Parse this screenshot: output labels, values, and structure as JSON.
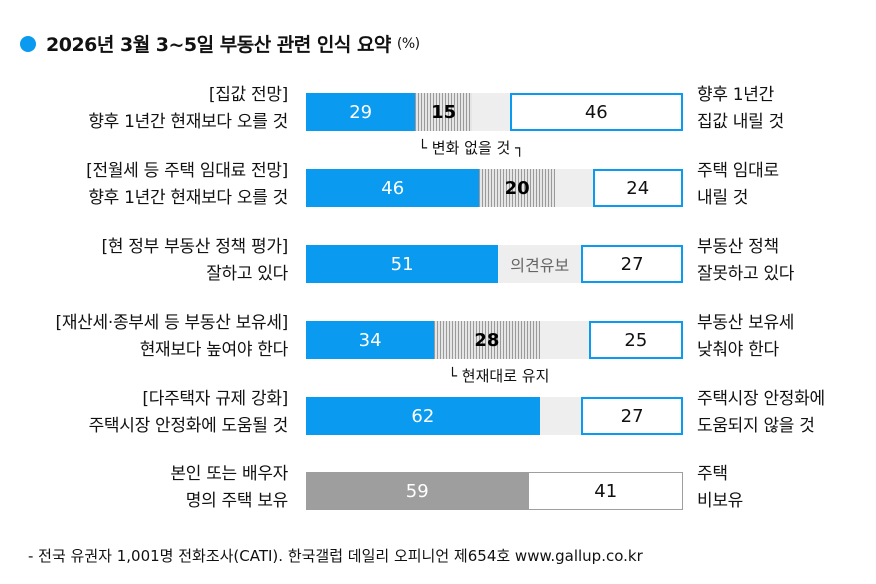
{
  "title": "2026년 3월 3~5일 부동산 관련 인식 요약",
  "unit": "(%)",
  "colors": {
    "accent": "#0a9bf0",
    "neutral": "#9e9e9e",
    "remainder": "#eeeeee"
  },
  "chart_data": {
    "type": "bar",
    "stacked": true,
    "title": "2026년 3월 3~5일 부동산 관련 인식 요약 (%)",
    "rows": [
      {
        "left": [
          "[집값 전망]",
          "향후 1년간 현재보다 오를 것"
        ],
        "right": [
          "향후 1년간",
          "집값 내릴 것"
        ],
        "primary": 29,
        "middle": 15,
        "middle_label": "",
        "secondary": 46
      },
      {
        "left": [
          "[전월세 등 주택 임대료 전망]",
          "향후 1년간 현재보다 오를 것"
        ],
        "right": [
          "주택 임대로",
          "내릴 것"
        ],
        "primary": 46,
        "middle": 20,
        "middle_label": "",
        "secondary": 24
      },
      {
        "left": [
          "[현 정부 부동산 정책 평가]",
          "잘하고 있다"
        ],
        "right": [
          "부동산 정책",
          "잘못하고 있다"
        ],
        "primary": 51,
        "middle": null,
        "middle_label": "의견유보",
        "secondary": 27
      },
      {
        "left": [
          "[재산세·종부세 등 부동산 보유세]",
          "현재보다 높여야 한다"
        ],
        "right": [
          "부동산 보유세",
          "낮춰야 한다"
        ],
        "primary": 34,
        "middle": 28,
        "middle_label": "",
        "secondary": 25
      },
      {
        "left": [
          "[다주택자 규제 강화]",
          "주택시장 안정화에 도움될 것"
        ],
        "right": [
          "주택시장 안정화에",
          "도움되지 않을 것"
        ],
        "primary": 62,
        "middle": null,
        "middle_label": "",
        "secondary": 27
      },
      {
        "left": [
          "본인 또는 배우자",
          "명의 주택 보유"
        ],
        "right": [
          "주택",
          "비보유"
        ],
        "primary": 59,
        "middle": null,
        "middle_label": "",
        "secondary": 41,
        "gray": true
      }
    ],
    "annotations": [
      "└ 변화 없을 것 ┐",
      "└ 현재대로 유지"
    ]
  },
  "footer": "- 전국 유권자 1,001명 전화조사(CATI). 한국갤럽 데일리 오피니언 제654호 www.gallup.co.kr"
}
